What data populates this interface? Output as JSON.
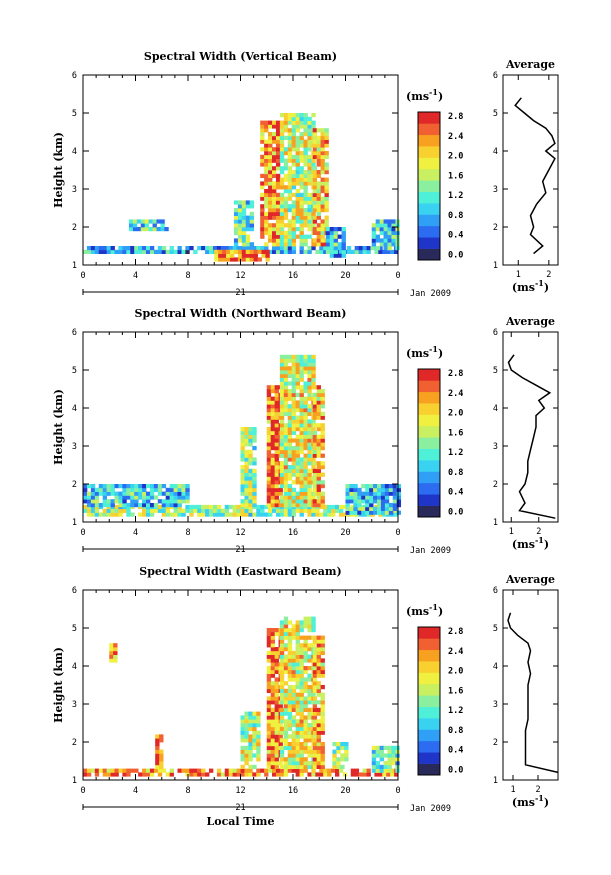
{
  "colors": {
    "colormap": [
      "#2a2a5a",
      "#1f35c8",
      "#2b6cf0",
      "#2fa0f5",
      "#39d2f0",
      "#4ff0d8",
      "#8af0a0",
      "#c8f060",
      "#f0f040",
      "#f8d030",
      "#f8a020",
      "#f06030",
      "#e02828"
    ],
    "axis": "#000000",
    "average_line": "#000000"
  },
  "chart_data": [
    {
      "type": "heatmap",
      "panel": "vertical",
      "title": "Spectral Width (Vertical Beam)",
      "xlabel": "",
      "ylabel": "Height (km)",
      "xlim": [
        0,
        24
      ],
      "ylim": [
        1,
        6
      ],
      "x_ticks": [
        "0",
        "4",
        "8",
        "12",
        "16",
        "20",
        "0"
      ],
      "y_ticks": [
        "1",
        "2",
        "3",
        "4",
        "5",
        "6"
      ],
      "date_day": "21",
      "date_month": "Jan 2009",
      "colorbar": {
        "unit": "(ms",
        "exp": "-1",
        "unit_close": ")",
        "ticks": [
          "0.0",
          "0.4",
          "0.8",
          "1.2",
          "1.6",
          "2.0",
          "2.4",
          "2.8"
        ],
        "range": [
          0,
          3.0
        ]
      },
      "regions": [
        {
          "t0": 0,
          "t1": 24,
          "h0": 1.3,
          "h1": 1.45,
          "v": 0.9
        },
        {
          "t0": 3.5,
          "t1": 6.5,
          "h0": 1.9,
          "h1": 2.2,
          "v": 1.2
        },
        {
          "t0": 10,
          "t1": 14,
          "h0": 1.1,
          "h1": 1.4,
          "v": 2.6
        },
        {
          "t0": 11.5,
          "t1": 13,
          "h0": 1.5,
          "h1": 2.7,
          "v": 1.3
        },
        {
          "t0": 13.5,
          "t1": 15,
          "h0": 1.5,
          "h1": 4.8,
          "v": 2.4
        },
        {
          "t0": 15,
          "t1": 17.5,
          "h0": 1.5,
          "h1": 5.0,
          "v": 1.8
        },
        {
          "t0": 17.5,
          "t1": 18.5,
          "h0": 1.5,
          "h1": 4.6,
          "v": 2.2
        },
        {
          "t0": 18.5,
          "t1": 20,
          "h0": 1.2,
          "h1": 2.0,
          "v": 1.0
        },
        {
          "t0": 22,
          "t1": 24,
          "h0": 1.4,
          "h1": 2.2,
          "v": 1.1
        }
      ],
      "average": {
        "title": "Average",
        "xlabel": "(ms",
        "xexp": "-1",
        "xlabel_close": ")",
        "xlim": [
          0.5,
          2.3
        ],
        "ylim": [
          1,
          6
        ],
        "x_ticks": [
          "1",
          "2"
        ],
        "y_ticks": [
          "1",
          "2",
          "3",
          "4",
          "5",
          "6"
        ],
        "profile_km": [
          1.3,
          1.5,
          1.8,
          2.0,
          2.3,
          2.6,
          2.9,
          3.2,
          3.5,
          3.8,
          4.0,
          4.2,
          4.4,
          4.6,
          4.8,
          5.0,
          5.2,
          5.4
        ],
        "profile_width": [
          1.5,
          1.8,
          1.4,
          1.5,
          1.4,
          1.6,
          1.9,
          1.8,
          2.0,
          2.2,
          1.9,
          2.2,
          2.1,
          1.9,
          1.5,
          1.2,
          0.9,
          1.1
        ]
      }
    },
    {
      "type": "heatmap",
      "panel": "northward",
      "title": "Spectral Width (Northward Beam)",
      "xlabel": "",
      "ylabel": "Height (km)",
      "xlim": [
        0,
        24
      ],
      "ylim": [
        1,
        6
      ],
      "x_ticks": [
        "0",
        "4",
        "8",
        "12",
        "16",
        "20",
        "0"
      ],
      "y_ticks": [
        "1",
        "2",
        "3",
        "4",
        "5",
        "6"
      ],
      "date_day": "21",
      "date_month": "Jan 2009",
      "colorbar": {
        "unit": "(ms",
        "exp": "-1",
        "unit_close": ")",
        "ticks": [
          "0.0",
          "0.4",
          "0.8",
          "1.2",
          "1.6",
          "2.0",
          "2.4",
          "2.8"
        ],
        "range": [
          0,
          3.0
        ]
      },
      "regions": [
        {
          "t0": 0,
          "t1": 24,
          "h0": 1.15,
          "h1": 1.4,
          "v": 1.6
        },
        {
          "t0": 0,
          "t1": 8,
          "h0": 1.4,
          "h1": 2.0,
          "v": 1.1
        },
        {
          "t0": 12,
          "t1": 13,
          "h0": 1.4,
          "h1": 3.5,
          "v": 1.6
        },
        {
          "t0": 14,
          "t1": 15,
          "h0": 1.4,
          "h1": 4.6,
          "v": 2.5
        },
        {
          "t0": 15,
          "t1": 17.5,
          "h0": 1.4,
          "h1": 5.4,
          "v": 1.9
        },
        {
          "t0": 17.5,
          "t1": 18.3,
          "h0": 1.4,
          "h1": 4.6,
          "v": 2.2
        },
        {
          "t0": 20,
          "t1": 24,
          "h0": 1.2,
          "h1": 2.0,
          "v": 1.0
        }
      ],
      "average": {
        "title": "Average",
        "xlabel": "(ms",
        "xexp": "-1",
        "xlabel_close": ")",
        "xlim": [
          0.7,
          2.7
        ],
        "ylim": [
          1,
          6
        ],
        "x_ticks": [
          "1",
          "2"
        ],
        "y_ticks": [
          "1",
          "2",
          "3",
          "4",
          "5",
          "6"
        ],
        "profile_km": [
          1.1,
          1.3,
          1.5,
          1.8,
          2.0,
          2.3,
          2.6,
          2.9,
          3.2,
          3.5,
          3.8,
          4.0,
          4.2,
          4.4,
          4.6,
          4.8,
          5.0,
          5.2,
          5.4
        ],
        "profile_width": [
          2.6,
          1.3,
          1.5,
          1.3,
          1.5,
          1.6,
          1.6,
          1.7,
          1.8,
          1.9,
          1.9,
          2.2,
          2.0,
          2.4,
          1.9,
          1.4,
          1.0,
          0.9,
          1.1
        ]
      }
    },
    {
      "type": "heatmap",
      "panel": "eastward",
      "title": "Spectral Width (Eastward Beam)",
      "xlabel": "Local Time",
      "ylabel": "Height (km)",
      "xlim": [
        0,
        24
      ],
      "ylim": [
        1,
        6
      ],
      "x_ticks": [
        "0",
        "4",
        "8",
        "12",
        "16",
        "20",
        "0"
      ],
      "y_ticks": [
        "1",
        "2",
        "3",
        "4",
        "5",
        "6"
      ],
      "date_day": "21",
      "date_month": "Jan 2009",
      "colorbar": {
        "unit": "(ms",
        "exp": "-1",
        "unit_close": ")",
        "ticks": [
          "0.0",
          "0.4",
          "0.8",
          "1.2",
          "1.6",
          "2.0",
          "2.4",
          "2.8"
        ],
        "range": [
          0,
          3.0
        ]
      },
      "regions": [
        {
          "t0": 0,
          "t1": 24,
          "h0": 1.1,
          "h1": 1.3,
          "v": 2.4
        },
        {
          "t0": 2,
          "t1": 2.4,
          "h0": 4.1,
          "h1": 4.6,
          "v": 2.3
        },
        {
          "t0": 5.5,
          "t1": 6,
          "h0": 1.3,
          "h1": 2.2,
          "v": 2.6
        },
        {
          "t0": 12,
          "t1": 13.5,
          "h0": 1.3,
          "h1": 2.8,
          "v": 1.8
        },
        {
          "t0": 14,
          "t1": 15,
          "h0": 1.3,
          "h1": 5.0,
          "v": 2.5
        },
        {
          "t0": 15,
          "t1": 17.5,
          "h0": 1.3,
          "h1": 5.3,
          "v": 1.9
        },
        {
          "t0": 17.5,
          "t1": 18.3,
          "h0": 1.3,
          "h1": 4.8,
          "v": 2.3
        },
        {
          "t0": 19,
          "t1": 20,
          "h0": 1.3,
          "h1": 2.0,
          "v": 1.6
        },
        {
          "t0": 22,
          "t1": 24,
          "h0": 1.2,
          "h1": 1.9,
          "v": 1.3
        }
      ],
      "average": {
        "title": "Average",
        "xlabel": "(ms",
        "xexp": "-1",
        "xlabel_close": ")",
        "xlim": [
          0.6,
          2.8
        ],
        "ylim": [
          1,
          6
        ],
        "x_ticks": [
          "1",
          "2"
        ],
        "y_ticks": [
          "1",
          "2",
          "3",
          "4",
          "5",
          "6"
        ],
        "profile_km": [
          1.2,
          1.4,
          1.7,
          2.0,
          2.3,
          2.6,
          2.9,
          3.2,
          3.5,
          3.8,
          4.1,
          4.4,
          4.6,
          4.8,
          5.0,
          5.2,
          5.4
        ],
        "profile_width": [
          2.8,
          1.5,
          1.5,
          1.5,
          1.5,
          1.6,
          1.6,
          1.6,
          1.6,
          1.7,
          1.6,
          1.7,
          1.6,
          1.2,
          0.9,
          0.8,
          0.9
        ]
      }
    }
  ]
}
